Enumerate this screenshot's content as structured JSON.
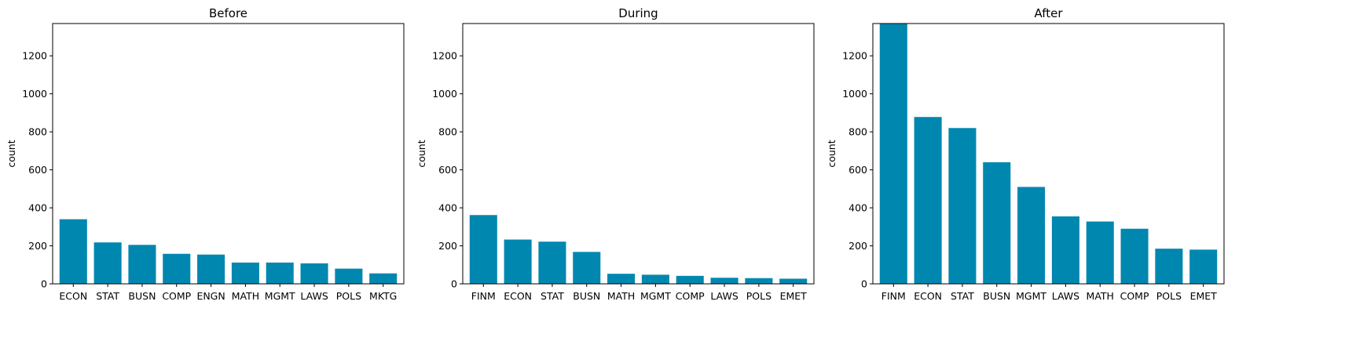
{
  "colors": {
    "bar": "#0087b0",
    "axis": "#000000"
  },
  "chart_data": [
    {
      "type": "bar",
      "title": "Before",
      "xlabel": "",
      "ylabel": "count",
      "ylim": [
        0,
        1370
      ],
      "yticks": [
        0,
        200,
        400,
        600,
        800,
        1000,
        1200
      ],
      "categories": [
        "ECON",
        "STAT",
        "BUSN",
        "COMP",
        "ENGN",
        "MATH",
        "MGMT",
        "LAWS",
        "POLS",
        "MKTG"
      ],
      "values": [
        340,
        218,
        205,
        158,
        154,
        112,
        112,
        108,
        80,
        55
      ]
    },
    {
      "type": "bar",
      "title": "During",
      "xlabel": "",
      "ylabel": "count",
      "ylim": [
        0,
        1370
      ],
      "yticks": [
        0,
        200,
        400,
        600,
        800,
        1000,
        1200
      ],
      "categories": [
        "FINM",
        "ECON",
        "STAT",
        "BUSN",
        "MATH",
        "MGMT",
        "COMP",
        "LAWS",
        "POLS",
        "EMET"
      ],
      "values": [
        362,
        233,
        222,
        168,
        53,
        48,
        42,
        32,
        30,
        27
      ]
    },
    {
      "type": "bar",
      "title": "After",
      "xlabel": "",
      "ylabel": "count",
      "ylim": [
        0,
        1370
      ],
      "yticks": [
        0,
        200,
        400,
        600,
        800,
        1000,
        1200
      ],
      "categories": [
        "FINM",
        "ECON",
        "STAT",
        "BUSN",
        "MGMT",
        "LAWS",
        "MATH",
        "COMP",
        "POLS",
        "EMET"
      ],
      "values": [
        1370,
        878,
        820,
        640,
        510,
        355,
        328,
        290,
        185,
        180
      ]
    }
  ]
}
